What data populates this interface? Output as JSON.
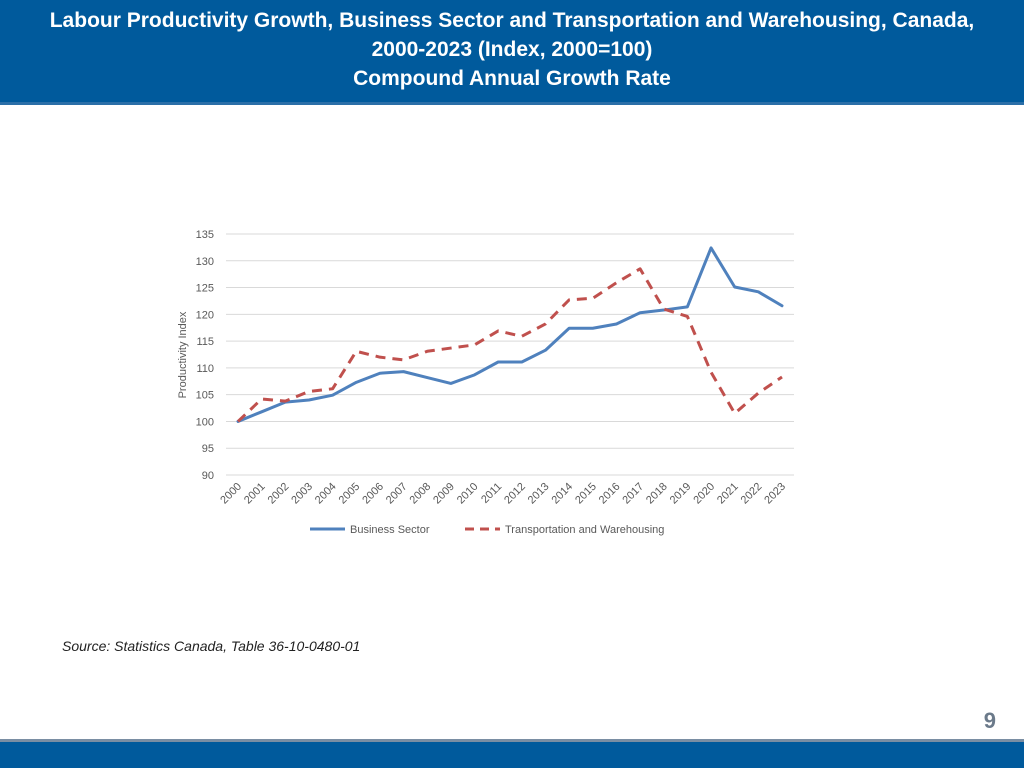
{
  "header": {
    "title_line1": "Labour Productivity Growth, Business Sector and Transportation and Warehousing, Canada,",
    "title_line2": "2000-2023 (Index, 2000=100)",
    "title_line3": "Compound Annual Growth Rate"
  },
  "source": "Source: Statistics Canada, Table 36-10-0480-01",
  "page_number": "9",
  "colors": {
    "header": "#005a9c",
    "business": "#4f81bd",
    "transport": "#c0504d",
    "grid": "#d9d9d9"
  },
  "chart_data": {
    "type": "line",
    "title": "Labour Productivity Growth, Business Sector and Transportation and Warehousing, Canada, 2000-2023 (Index, 2000=100)",
    "xlabel": "",
    "ylabel": "Productivity Index",
    "ylim": [
      90,
      135
    ],
    "yticks": [
      90,
      95,
      100,
      105,
      110,
      115,
      120,
      125,
      130,
      135
    ],
    "grid": true,
    "legend_position": "bottom",
    "categories": [
      "2000",
      "2001",
      "2002",
      "2003",
      "2004",
      "2005",
      "2006",
      "2007",
      "2008",
      "2009",
      "2010",
      "2011",
      "2012",
      "2013",
      "2014",
      "2015",
      "2016",
      "2017",
      "2018",
      "2019",
      "2020",
      "2021",
      "2022",
      "2023"
    ],
    "series": [
      {
        "name": "Business Sector",
        "style": "solid",
        "values": [
          100,
          101.8,
          103.6,
          104,
          104.9,
          107.3,
          109,
          109.3,
          108.2,
          107.1,
          108.7,
          111.1,
          111.1,
          113.3,
          117.4,
          117.4,
          118.2,
          120.3,
          120.8,
          121.4,
          132.4,
          125.1,
          124.2,
          121.6
        ]
      },
      {
        "name": "Transportation and Warehousing",
        "style": "dashed",
        "values": [
          100,
          104.2,
          103.8,
          105.6,
          106.1,
          113.1,
          112,
          111.5,
          113.1,
          113.7,
          114.3,
          116.9,
          115.9,
          118.2,
          122.7,
          123,
          125.9,
          128.5,
          121,
          119.6,
          109.2,
          101.5,
          105.3,
          108.3
        ]
      }
    ]
  }
}
